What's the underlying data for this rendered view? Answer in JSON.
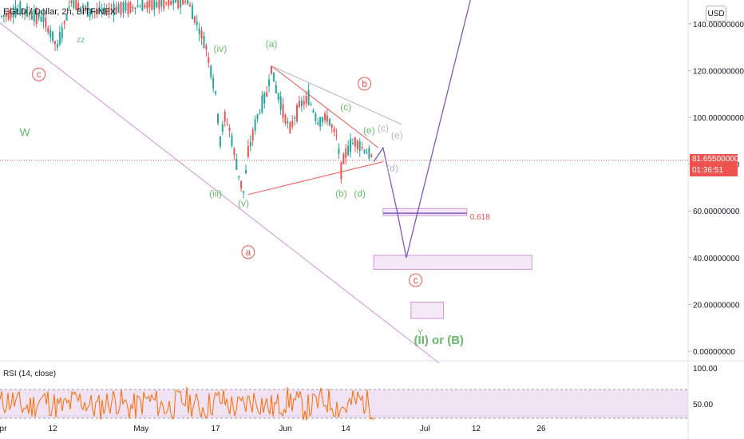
{
  "header": {
    "symbol": "EGLD / Dollar, 2h, BITFINEX",
    "currency_button": "USD"
  },
  "price_badge": {
    "price": "81.65500000",
    "countdown": "01:36:51",
    "color": "#ef5350"
  },
  "rsi": {
    "title": "RSI (14, close)",
    "ticks": [
      "100.00",
      "50.00"
    ]
  },
  "colors": {
    "up": "#26a69a",
    "down": "#ef5350",
    "wave_green": "#66bb6a",
    "wave_red": "#ef5350",
    "wave_gray": "#b2b5be",
    "projection": "#7e57c2",
    "trend_line": "#ce93d8",
    "rsi_line": "#ff6d00",
    "rsi_band": "#e1bee7"
  },
  "chart_data": {
    "type": "candlestick",
    "title": "EGLD / Dollar, 2h, BITFINEX",
    "y_axis": {
      "range": [
        -3,
        150
      ],
      "ticks": [
        "140.00000000",
        "120.00000000",
        "100.00000000",
        "80.00000000",
        "60.00000000",
        "40.00000000",
        "20.00000000",
        "0.00000000"
      ],
      "values": [
        140,
        120,
        100,
        80,
        60,
        40,
        20,
        0
      ]
    },
    "x_axis": {
      "labels": [
        "pr",
        "12",
        "May",
        "17",
        "Jun",
        "14",
        "Jul",
        "12",
        "26"
      ],
      "dates": [
        "2021-04-01",
        "2021-04-12",
        "2021-05-01",
        "2021-05-17",
        "2021-06-01",
        "2021-06-14",
        "2021-07-01",
        "2021-07-12",
        "2021-07-26"
      ]
    },
    "last_price": 81.655,
    "fib_label": "0.618",
    "price_path": [
      [
        "2021-04-01",
        143
      ],
      [
        "2021-04-05",
        146
      ],
      [
        "2021-04-10",
        142
      ],
      [
        "2021-04-13",
        130
      ],
      [
        "2021-04-16",
        150
      ],
      [
        "2021-04-20",
        145
      ],
      [
        "2021-05-11",
        150
      ],
      [
        "2021-05-13",
        140
      ],
      [
        "2021-05-15",
        130
      ],
      [
        "2021-05-17",
        110
      ],
      [
        "2021-05-18",
        90
      ],
      [
        "2021-05-19",
        100
      ],
      [
        "2021-05-20",
        95
      ],
      [
        "2021-05-22",
        75
      ],
      [
        "2021-05-23",
        68
      ],
      [
        "2021-05-24",
        85
      ],
      [
        "2021-05-26",
        100
      ],
      [
        "2021-05-28",
        110
      ],
      [
        "2021-05-29",
        121
      ],
      [
        "2021-05-30",
        112
      ],
      [
        "2021-06-01",
        100
      ],
      [
        "2021-06-02",
        95
      ],
      [
        "2021-06-04",
        105
      ],
      [
        "2021-06-06",
        108
      ],
      [
        "2021-06-08",
        98
      ],
      [
        "2021-06-10",
        100
      ],
      [
        "2021-06-12",
        92
      ],
      [
        "2021-06-13",
        78
      ],
      [
        "2021-06-14",
        85
      ],
      [
        "2021-06-16",
        90
      ],
      [
        "2021-06-18",
        86
      ],
      [
        "2021-06-20",
        82
      ]
    ],
    "trend_lines": [
      {
        "kind": "channel",
        "points": [
          [
            "2021-03-28",
            146
          ],
          [
            "2021-07-04",
            -5
          ]
        ]
      },
      {
        "kind": "triangle-upper",
        "points": [
          [
            "2021-05-29",
            122
          ],
          [
            "2021-06-21",
            87
          ]
        ]
      },
      {
        "kind": "triangle-lower",
        "points": [
          [
            "2021-05-24",
            67
          ],
          [
            "2021-06-22",
            81
          ]
        ]
      },
      {
        "kind": "gray-upper",
        "points": [
          [
            "2021-05-29",
            122
          ],
          [
            "2021-06-26",
            97
          ]
        ]
      }
    ],
    "projection_path": [
      [
        "2021-06-20",
        81
      ],
      [
        "2021-06-22",
        87
      ],
      [
        "2021-06-25",
        60
      ],
      [
        "2021-06-27",
        40
      ],
      [
        "2021-07-11",
        152
      ]
    ],
    "zones": [
      {
        "from": "2021-06-22",
        "to": "2021-07-10",
        "top": 61,
        "bottom": 58
      },
      {
        "from": "2021-06-20",
        "to": "2021-07-24",
        "top": 41,
        "bottom": 35
      },
      {
        "from": "2021-06-28",
        "to": "2021-07-05",
        "top": 21,
        "bottom": 14
      }
    ],
    "wave_labels": [
      {
        "text": "c",
        "style": "red-circle",
        "x": "2021-04-09",
        "y": 117
      },
      {
        "text": "W",
        "style": "green",
        "x": "2021-04-06",
        "y": 92
      },
      {
        "text": "zz",
        "style": "green-small",
        "x": "2021-04-18",
        "y": 132
      },
      {
        "text": "(iv)",
        "style": "green",
        "x": "2021-05-18",
        "y": 128
      },
      {
        "text": "(a)",
        "style": "green",
        "x": "2021-05-29",
        "y": 130
      },
      {
        "text": "b",
        "style": "red-circle",
        "x": "2021-06-18",
        "y": 113
      },
      {
        "text": "(c)",
        "style": "green",
        "x": "2021-06-14",
        "y": 103
      },
      {
        "text": "(e)",
        "style": "green",
        "x": "2021-06-19",
        "y": 93
      },
      {
        "text": "(c)",
        "style": "gray",
        "x": "2021-06-22",
        "y": 94
      },
      {
        "text": "(e)",
        "style": "gray",
        "x": "2021-06-25",
        "y": 91
      },
      {
        "text": "(d)",
        "style": "gray",
        "x": "2021-06-24",
        "y": 77
      },
      {
        "text": "(iii)",
        "style": "green",
        "x": "2021-05-17",
        "y": 66
      },
      {
        "text": "(v)",
        "style": "green",
        "x": "2021-05-23",
        "y": 62
      },
      {
        "text": "(b)",
        "style": "green",
        "x": "2021-06-13",
        "y": 66
      },
      {
        "text": "(d)",
        "style": "green",
        "x": "2021-06-17",
        "y": 66
      },
      {
        "text": "a",
        "style": "red-circle",
        "x": "2021-05-24",
        "y": 41
      },
      {
        "text": "c",
        "style": "red-circle",
        "x": "2021-06-29",
        "y": 29
      },
      {
        "text": "Y",
        "style": "green-small",
        "x": "2021-06-30",
        "y": 7
      },
      {
        "text": "(II) or (B)",
        "style": "green-bold",
        "x": "2021-07-04",
        "y": 3
      }
    ]
  }
}
